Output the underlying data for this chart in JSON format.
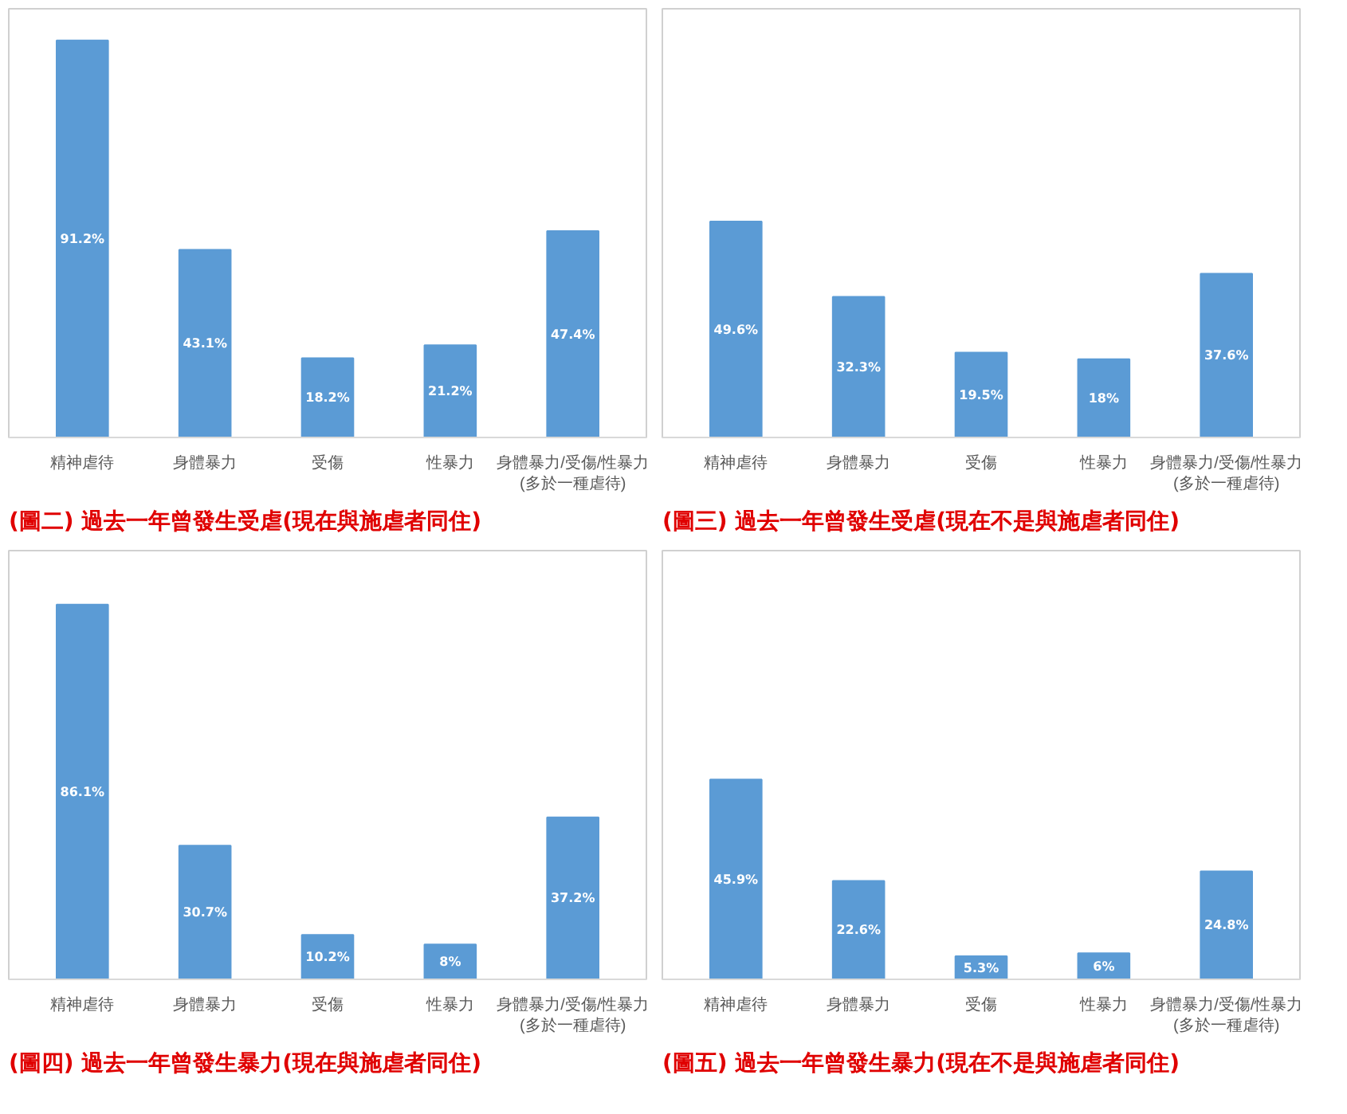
{
  "chart_data": [
    {
      "type": "bar",
      "title": "(圖二) 過去一年曾發生受虐(現在與施虐者同住)",
      "categories": [
        "精神虐待",
        "身體暴力",
        "受傷",
        "性暴力",
        "身體暴力/受傷/性暴力(多於一種虐待)"
      ],
      "values": [
        91.2,
        43.1,
        18.2,
        21.2,
        47.4
      ],
      "value_labels": [
        "91.2%",
        "43.1%",
        "18.2%",
        "21.2%",
        "47.4%"
      ],
      "color": "#5b9bd5",
      "grid": false
    },
    {
      "type": "bar",
      "title": "(圖三) 過去一年曾發生受虐(現在不是與施虐者同住)",
      "categories": [
        "精神虐待",
        "身體暴力",
        "受傷",
        "性暴力",
        "身體暴力/受傷/性暴力(多於一種虐待)"
      ],
      "values": [
        49.6,
        32.3,
        19.5,
        18,
        37.6
      ],
      "value_labels": [
        "49.6%",
        "32.3%",
        "19.5%",
        "18%",
        "37.6%"
      ],
      "color": "#5b9bd5",
      "grid": false
    },
    {
      "type": "bar",
      "title": "(圖四) 過去一年曾發生暴力(現在與施虐者同住)",
      "categories": [
        "精神虐待",
        "身體暴力",
        "受傷",
        "性暴力",
        "身體暴力/受傷/性暴力(多於一種虐待)"
      ],
      "values": [
        86.1,
        30.7,
        10.2,
        8,
        37.2
      ],
      "value_labels": [
        "86.1%",
        "30.7%",
        "10.2%",
        "8%",
        "37.2%"
      ],
      "color": "#5b9bd5",
      "grid": false
    },
    {
      "type": "bar",
      "title": "(圖五) 過去一年曾發生暴力(現在不是與施虐者同住)",
      "categories": [
        "精神虐待",
        "身體暴力",
        "受傷",
        "性暴力",
        "身體暴力/受傷/性暴力(多於一種虐待)"
      ],
      "values": [
        45.9,
        22.6,
        5.3,
        6,
        24.8
      ],
      "value_labels": [
        "45.9%",
        "22.6%",
        "5.3%",
        "6%",
        "24.8%"
      ],
      "color": "#5b9bd5",
      "grid": false
    }
  ]
}
